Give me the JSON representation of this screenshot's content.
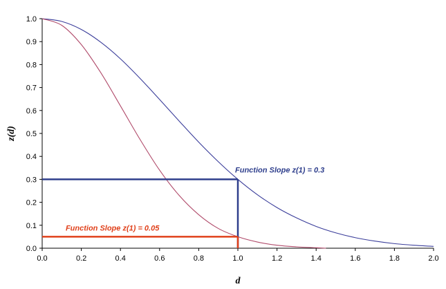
{
  "chart_data": {
    "type": "line",
    "title": "",
    "xlabel": "d",
    "ylabel": "z(d)",
    "xlim": [
      0,
      2
    ],
    "ylim": [
      0,
      1
    ],
    "grid": false,
    "x_ticks": [
      "0.0",
      "0.2",
      "0.4",
      "0.6",
      "0.8",
      "1.0",
      "1.2",
      "1.4",
      "1.6",
      "1.8",
      "2.0"
    ],
    "y_ticks": [
      "0.0",
      "0.1",
      "0.2",
      "0.3",
      "0.4",
      "0.5",
      "0.6",
      "0.7",
      "0.8",
      "0.9",
      "1.0"
    ],
    "series": [
      {
        "color": "#3a3d9a",
        "x": [
          0,
          0.1,
          0.2,
          0.3,
          0.4,
          0.5,
          0.6,
          0.7,
          0.8,
          0.9,
          1.0,
          1.1,
          1.2,
          1.3,
          1.4,
          1.5,
          1.6,
          1.7,
          1.8,
          1.9,
          2.0
        ],
        "y": [
          1.0,
          0.988,
          0.953,
          0.897,
          0.825,
          0.74,
          0.648,
          0.554,
          0.462,
          0.377,
          0.3,
          0.233,
          0.177,
          0.132,
          0.095,
          0.067,
          0.046,
          0.031,
          0.02,
          0.013,
          0.008
        ]
      },
      {
        "color": "#b04a6a",
        "x": [
          0,
          0.1,
          0.2,
          0.3,
          0.4,
          0.5,
          0.6,
          0.7,
          0.8,
          0.9,
          1.0,
          1.1,
          1.2,
          1.3,
          1.4,
          1.45
        ],
        "y": [
          1.0,
          0.971,
          0.887,
          0.764,
          0.62,
          0.474,
          0.34,
          0.23,
          0.146,
          0.086,
          0.05,
          0.027,
          0.013,
          0.006,
          0.002,
          0.0
        ]
      }
    ],
    "reference_lines": [
      {
        "color": "#2e3e8c",
        "x": 1.0,
        "y": 0.3
      },
      {
        "color": "#e0401a",
        "x": 1.0,
        "y": 0.05
      }
    ],
    "annotations": [
      {
        "text": "Function Slope z(1) = 0.3",
        "color": "#2e3e8c",
        "x": 1.0,
        "y": 0.3
      },
      {
        "text": "Function Slope z(1) = 0.05",
        "color": "#e0401a",
        "x": 0.12,
        "y": 0.05
      }
    ]
  }
}
